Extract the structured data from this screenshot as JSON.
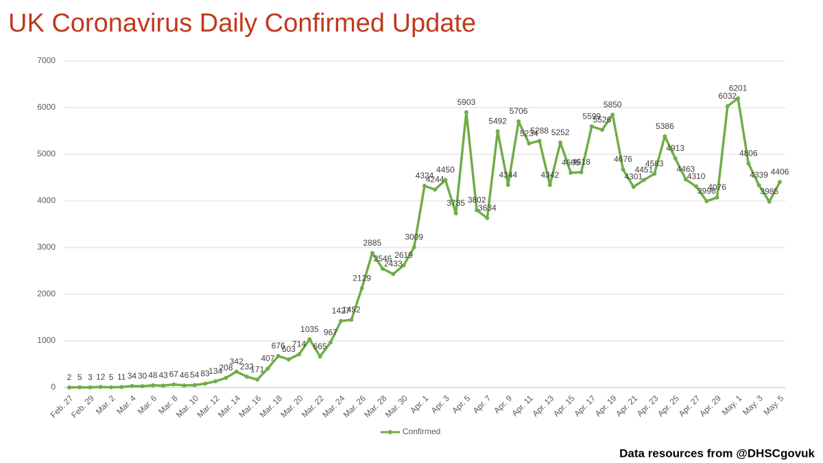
{
  "chart_data": {
    "type": "line",
    "title": "UK Coronavirus Daily Confirmed Update",
    "source": "Data resources from @DHSCgovuk",
    "categories": [
      "Feb. 27",
      null,
      "Feb. 29",
      null,
      "Mar. 2",
      null,
      "Mar. 4",
      null,
      "Mar. 6",
      null,
      "Mar. 8",
      null,
      "Mar. 10",
      null,
      "Mar. 12",
      null,
      "Mar. 14",
      null,
      "Mar. 16",
      null,
      "Mar. 18",
      null,
      "Mar. 20",
      null,
      "Mar. 22",
      null,
      "Mar. 24",
      null,
      "Mar. 26",
      null,
      "Mar. 28",
      null,
      "Mar. 30",
      null,
      "Apr. 1",
      null,
      "Apr. 3",
      null,
      "Apr. 5",
      null,
      "Apr. 7",
      null,
      "Apr. 9",
      null,
      "Apr. 11",
      null,
      "Apr. 13",
      null,
      "Apr. 15",
      null,
      "Apr. 17",
      null,
      "Apr. 19",
      null,
      "Apr. 21",
      null,
      "Apr. 23",
      null,
      "Apr. 25",
      null,
      "Apr. 27",
      null,
      "Apr. 29",
      null,
      "May. 1",
      null,
      "May. 3",
      null,
      "May. 5"
    ],
    "series": [
      {
        "name": "Confirmed",
        "color": "#70ad47",
        "values": [
          2,
          5,
          3,
          12,
          5,
          11,
          34,
          30,
          48,
          43,
          67,
          46,
          54,
          83,
          134,
          208,
          342,
          232,
          171,
          407,
          676,
          603,
          714,
          1035,
          665,
          967,
          1427,
          1452,
          2129,
          2885,
          2546,
          2433,
          2619,
          3009,
          4324,
          4244,
          4450,
          3735,
          5903,
          3802,
          3634,
          5492,
          4344,
          5706,
          5234,
          5288,
          4342,
          5252,
          4605,
          4618,
          5599,
          5526,
          5850,
          4676,
          4301,
          4451,
          4583,
          5386,
          4913,
          4463,
          4310,
          3996,
          4076,
          6032,
          6201,
          4806,
          4339,
          3985,
          4406
        ]
      }
    ],
    "ylim": [
      0,
      7000
    ],
    "yticks": [
      0,
      1000,
      2000,
      3000,
      4000,
      5000,
      6000,
      7000
    ],
    "grid": true,
    "legend": "bottom"
  }
}
